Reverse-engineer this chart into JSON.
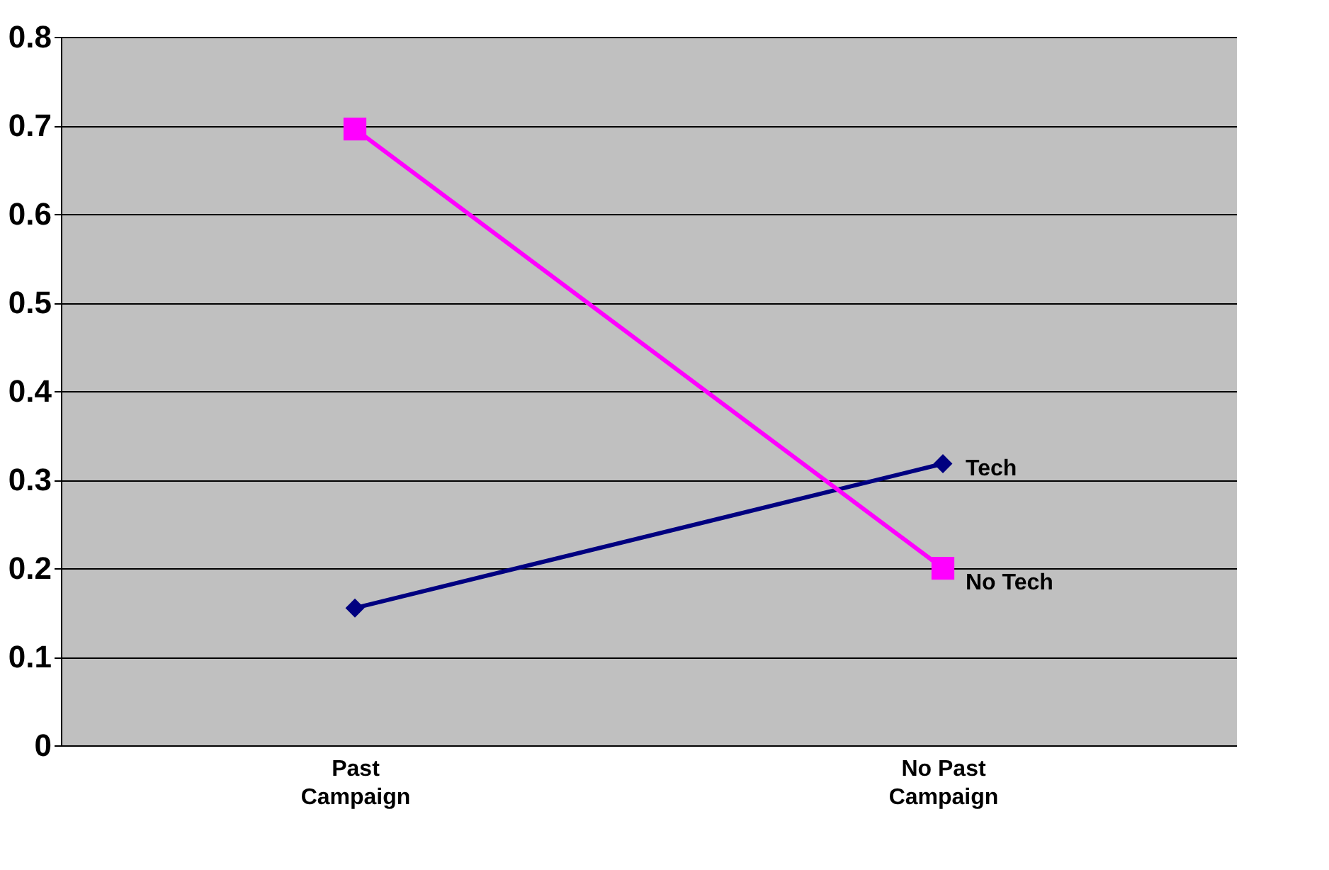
{
  "chart_data": {
    "type": "line",
    "categories": [
      "Past Campaign",
      "No Past Campaign"
    ],
    "series": [
      {
        "name": "Tech",
        "color": "#000080",
        "marker": "diamond",
        "values": [
          0.155,
          0.318
        ]
      },
      {
        "name": "No Tech",
        "color": "#ff00ff",
        "marker": "square",
        "values": [
          0.696,
          0.2
        ]
      }
    ],
    "ylim": [
      0,
      0.8
    ],
    "yticks": [
      0,
      0.1,
      0.2,
      0.3,
      0.4,
      0.5,
      0.6,
      0.7,
      0.8
    ],
    "grid": "y",
    "legend": false,
    "line_style": "solid"
  }
}
